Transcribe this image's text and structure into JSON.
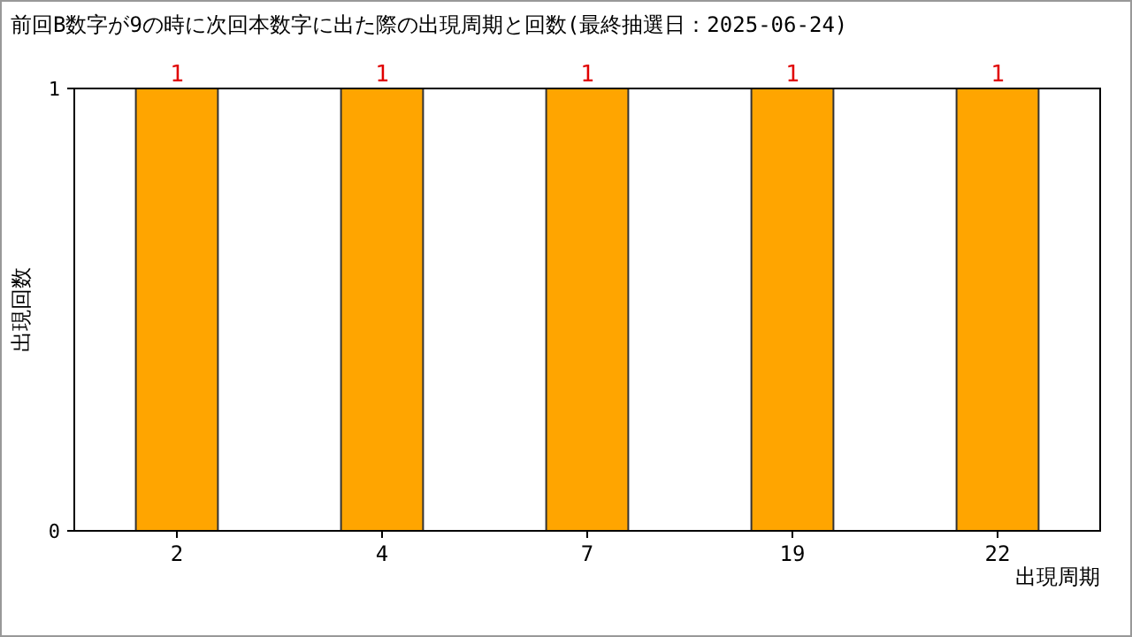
{
  "chart_data": {
    "type": "bar",
    "title": "前回B数字が9の時に次回本数字に出た際の出現周期と回数(最終抽選日：2025-06-24)",
    "xlabel": "出現周期",
    "ylabel": "出現回数",
    "categories": [
      "2",
      "4",
      "7",
      "19",
      "22"
    ],
    "values": [
      1,
      1,
      1,
      1,
      1
    ],
    "color": "#ffa500",
    "ylim": [
      0,
      1
    ],
    "yticks": [
      0,
      1
    ],
    "data_labels": true
  }
}
